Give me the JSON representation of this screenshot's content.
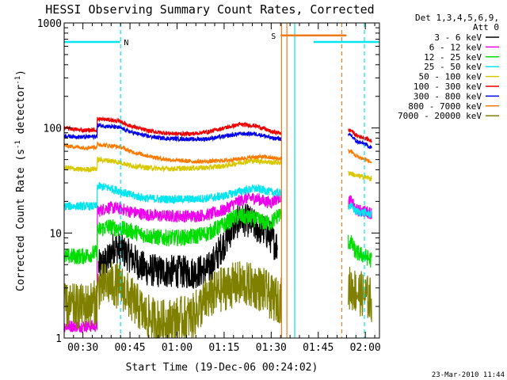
{
  "chart_data": {
    "type": "line",
    "title": "HESSI Observing Summary Count Rates, Corrected",
    "xlabel": "Start Time (19-Dec-06 00:24:02)",
    "ylabel_main": "Corrected Count Rate (s",
    "ylabel_sup1": "-1",
    "ylabel_mid": " detector",
    "ylabel_sup2": "-1",
    "ylabel_end": ")",
    "yscale": "log",
    "ylim": [
      1,
      1000
    ],
    "xlim_minutes": [
      24.03,
      124.5
    ],
    "x_ticks": [
      "00:30",
      "00:45",
      "01:00",
      "01:15",
      "01:30",
      "01:45",
      "02:00"
    ],
    "x_tick_minutes": [
      30,
      45,
      60,
      75,
      90,
      105,
      120
    ],
    "y_ticks": [
      "1",
      "10",
      "100",
      "1000"
    ],
    "y_tick_values": [
      1,
      10,
      100,
      1000
    ],
    "legend_header": [
      "Det 1,3,4,5,6,9,",
      "Att 0"
    ],
    "timestamp": "23-Mar-2010 11:44",
    "flags": [
      {
        "label": "N",
        "color": "#00e5ee",
        "start": 24.03,
        "end": 41.8,
        "level": 660
      },
      {
        "label": "N",
        "color": "#00e5ee",
        "start": 103.5,
        "end": 124.5,
        "level": 660
      },
      {
        "label": "S",
        "color": "#f07a1a",
        "start": 93.0,
        "end": 114.0,
        "level": 760
      }
    ],
    "flag_labels": [
      "N",
      "S"
    ],
    "vlines": [
      {
        "minute": 42.0,
        "color": "#00e5ee",
        "style": "dashed"
      },
      {
        "minute": 93.3,
        "color": "#f07a1a",
        "style": "solid"
      },
      {
        "minute": 95.0,
        "color": "#f07a1a",
        "style": "solid"
      },
      {
        "minute": 97.5,
        "color": "#00e5ee",
        "style": "solid"
      },
      {
        "minute": 112.5,
        "color": "#f07a1a",
        "style": "dashed"
      },
      {
        "minute": 119.7,
        "color": "#00e5ee",
        "style": "dashed"
      }
    ],
    "gap_minutes": [
      93.2,
      114.5
    ],
    "series": [
      {
        "name": "3 - 6 keV",
        "color": "#000000",
        "x": [
          35,
          38,
          40,
          45,
          48,
          50,
          55,
          60,
          65,
          70,
          72,
          75,
          78,
          80,
          83,
          85,
          88,
          90,
          91,
          92
        ],
        "y": [
          4.8,
          5.5,
          7.5,
          6.0,
          5.0,
          4.5,
          4.3,
          4.3,
          4.2,
          4.5,
          5.5,
          8.0,
          11.5,
          13.5,
          13.0,
          11.5,
          10.5,
          9.0,
          8.0,
          7.5
        ],
        "noise": 0.16
      },
      {
        "name": "6 - 12 keV",
        "color": "#ee00ee",
        "x": [
          24,
          30,
          34.5,
          34.6,
          38,
          42,
          45,
          50,
          55,
          60,
          65,
          70,
          75,
          78,
          82,
          85,
          88,
          90,
          92.5,
          115.5,
          117,
          120,
          122
        ],
        "y": [
          1.3,
          1.3,
          1.3,
          16,
          17.5,
          17,
          16,
          15,
          14.5,
          14.5,
          14.5,
          15,
          16.5,
          19,
          21.5,
          21.5,
          20,
          19.5,
          22,
          20,
          16.5,
          16,
          15.5
        ],
        "noise": 0.06
      },
      {
        "name": "12 - 25 keV",
        "color": "#00dd00",
        "x": [
          24,
          30,
          34.5,
          34.6,
          38,
          42,
          45,
          50,
          55,
          60,
          65,
          70,
          75,
          78,
          80,
          85,
          88,
          90,
          92.5,
          115.5,
          117,
          120,
          122
        ],
        "y": [
          6.0,
          6.0,
          6.5,
          10.5,
          11.5,
          11.0,
          10.5,
          9.5,
          9.0,
          9.0,
          9.2,
          10.0,
          12.0,
          14.0,
          14.5,
          13.5,
          12.5,
          12.5,
          15.0,
          8.0,
          6.5,
          6.0,
          5.5
        ],
        "noise": 0.08
      },
      {
        "name": "25 - 50 keV",
        "color": "#00e5ee",
        "x": [
          24,
          30,
          34.5,
          34.6,
          38,
          42,
          45,
          50,
          55,
          60,
          65,
          70,
          75,
          80,
          85,
          88,
          90,
          92.5,
          115.5,
          117,
          120,
          122
        ],
        "y": [
          18,
          18,
          18,
          28,
          27,
          25,
          23,
          21.5,
          21,
          21,
          21,
          21.5,
          22.5,
          25,
          26.5,
          25.5,
          24.5,
          24,
          18,
          16,
          15.5,
          15
        ],
        "noise": 0.04
      },
      {
        "name": "50 - 100 keV",
        "color": "#d8c800",
        "x": [
          24,
          30,
          34.5,
          34.6,
          38,
          42,
          45,
          50,
          55,
          60,
          65,
          70,
          75,
          80,
          85,
          88,
          90,
          92.5,
          115.5,
          117,
          120,
          122
        ],
        "y": [
          42,
          40,
          41,
          50,
          49,
          47,
          44,
          42,
          41,
          41,
          41.5,
          42,
          43.5,
          47,
          49,
          48,
          47,
          47,
          37,
          35,
          34,
          33
        ],
        "noise": 0.025
      },
      {
        "name": "100 - 300 keV",
        "color": "#ee0000",
        "x": [
          24,
          30,
          34.5,
          34.6,
          38,
          42,
          45,
          50,
          55,
          60,
          65,
          70,
          75,
          80,
          85,
          88,
          90,
          92.5,
          115.5,
          117,
          120,
          122
        ],
        "y": [
          100,
          95,
          96,
          122,
          120,
          115,
          105,
          95,
          90,
          88,
          88,
          92,
          100,
          108,
          105,
          98,
          92,
          90,
          95,
          85,
          80,
          75
        ],
        "noise": 0.02
      },
      {
        "name": "300 - 800 keV",
        "color": "#0000ee",
        "x": [
          24,
          30,
          34.5,
          34.6,
          38,
          42,
          45,
          50,
          55,
          60,
          65,
          70,
          75,
          80,
          85,
          88,
          90,
          92.5,
          115.5,
          117,
          120,
          122
        ],
        "y": [
          84,
          82,
          83,
          106,
          104,
          100,
          92,
          84,
          80,
          79,
          78,
          79,
          83,
          88,
          88,
          84,
          80,
          79,
          85,
          75,
          70,
          65
        ],
        "noise": 0.02
      },
      {
        "name": "800 - 7000 keV",
        "color": "#ff7a00",
        "x": [
          24,
          30,
          34.5,
          34.6,
          38,
          42,
          45,
          50,
          55,
          60,
          65,
          70,
          75,
          80,
          85,
          88,
          90,
          92.5,
          115.5,
          117,
          120,
          122
        ],
        "y": [
          68,
          65,
          66,
          70,
          68,
          66,
          60,
          55,
          51,
          49,
          48,
          48,
          49,
          51,
          53,
          53,
          52,
          51,
          60,
          54,
          50,
          47
        ],
        "noise": 0.02
      },
      {
        "name": "7000 - 20000 keV",
        "color": "#808000",
        "x": [
          24,
          30,
          34.5,
          34.6,
          38,
          42,
          45,
          50,
          55,
          60,
          65,
          70,
          75,
          80,
          85,
          88,
          90,
          92.5,
          115.5,
          117,
          120,
          122
        ],
        "y": [
          2.0,
          2.0,
          2.2,
          3.0,
          3.3,
          3.1,
          2.4,
          1.6,
          1.4,
          1.5,
          1.6,
          2.4,
          3.0,
          3.3,
          3.1,
          2.8,
          2.4,
          2.3,
          3.0,
          2.8,
          2.5,
          2.3
        ],
        "noise": 0.22
      }
    ]
  }
}
